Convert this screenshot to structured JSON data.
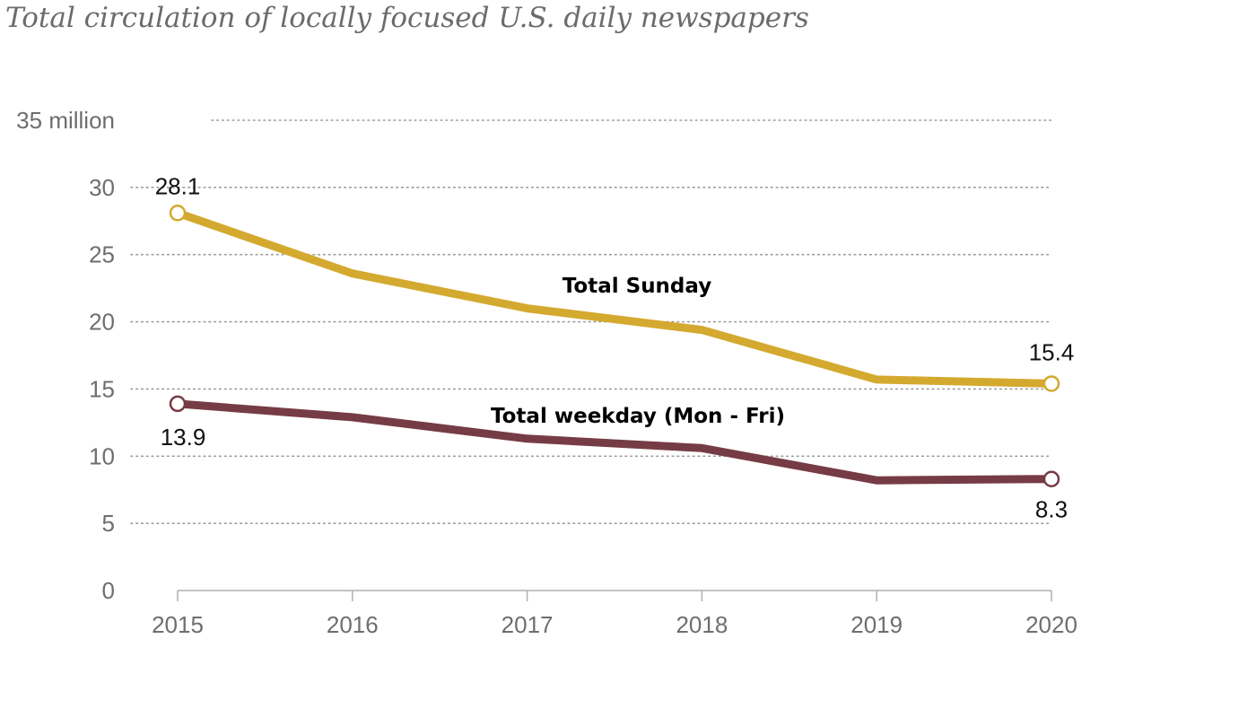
{
  "chart_data": {
    "type": "line",
    "title": "Total circulation of locally focused U.S. daily newspapers",
    "x": [
      "2015",
      "2016",
      "2017",
      "2018",
      "2019",
      "2020"
    ],
    "yticks": [
      "0",
      "5",
      "10",
      "15",
      "20",
      "25",
      "30",
      "35 million"
    ],
    "ylim": [
      0,
      35
    ],
    "grid": true,
    "series": [
      {
        "name": "Total Sunday",
        "values": [
          28.1,
          23.6,
          21.0,
          19.4,
          15.7,
          15.4
        ],
        "color": "#d4a92f",
        "labels": {
          "first": "28.1",
          "last": "15.4"
        }
      },
      {
        "name": "Total weekday (Mon - Fri)",
        "values": [
          13.9,
          12.9,
          11.3,
          10.6,
          8.2,
          8.3
        ],
        "color": "#763c45",
        "labels": {
          "first": "13.9",
          "last": "8.3"
        }
      }
    ]
  }
}
